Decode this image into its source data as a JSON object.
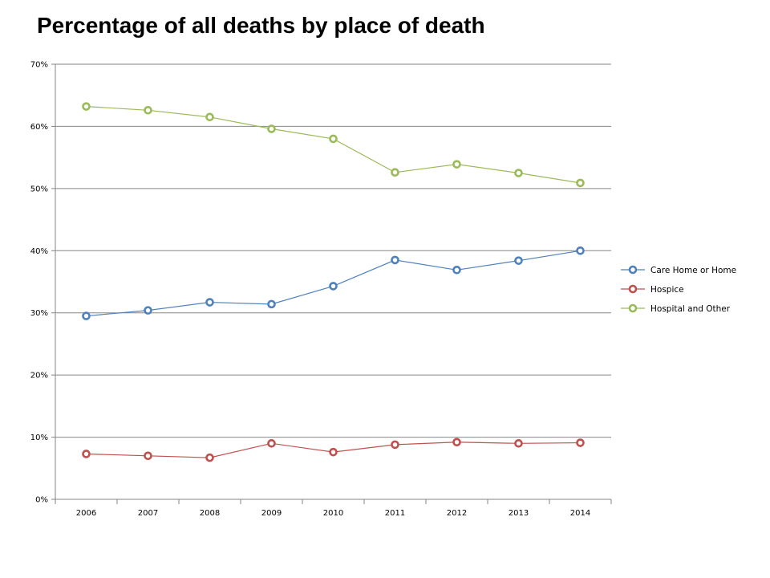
{
  "chart_data": {
    "type": "line",
    "title": "Percentage of all deaths by place of death",
    "xlabel": "",
    "ylabel": "",
    "x": [
      "2006",
      "2007",
      "2008",
      "2009",
      "2010",
      "2011",
      "2012",
      "2013",
      "2014"
    ],
    "ylim": [
      0,
      70
    ],
    "yticks": [
      0,
      10,
      20,
      30,
      40,
      50,
      60,
      70
    ],
    "ytick_labels": [
      "0%",
      "10%",
      "20%",
      "30%",
      "40%",
      "50%",
      "60%",
      "70%"
    ],
    "grid": "horizontal",
    "legend_position": "right",
    "series": [
      {
        "name": "Care Home or Home",
        "color": "#4F81BD",
        "values": [
          29.5,
          30.4,
          31.7,
          31.4,
          34.3,
          38.5,
          36.9,
          38.4,
          40.0
        ]
      },
      {
        "name": "Hospice",
        "color": "#C0504D",
        "values": [
          7.3,
          7.0,
          6.7,
          9.0,
          7.6,
          8.8,
          9.2,
          9.0,
          9.1
        ]
      },
      {
        "name": "Hospital and Other",
        "color": "#9BBB59",
        "values": [
          63.2,
          62.6,
          61.5,
          59.6,
          58.0,
          52.6,
          53.9,
          52.5,
          50.9
        ]
      }
    ]
  }
}
